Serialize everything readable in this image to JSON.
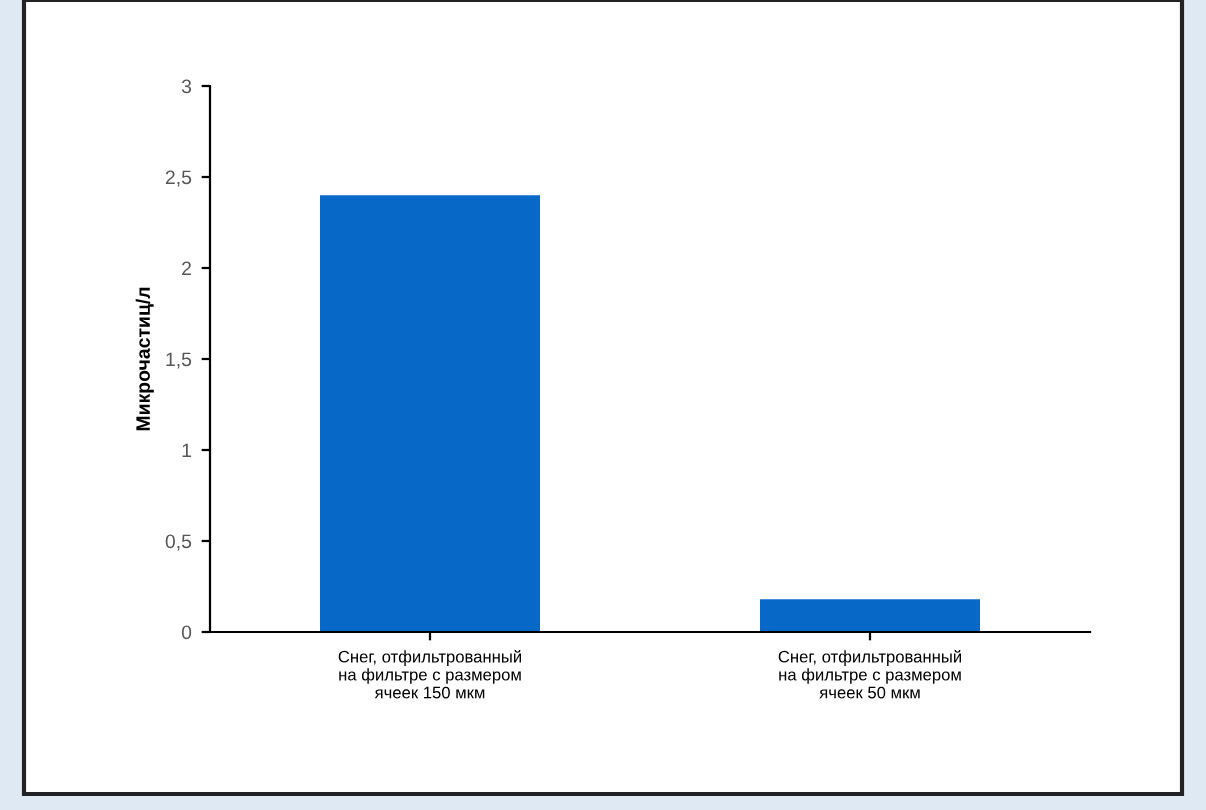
{
  "chart_data": {
    "type": "bar",
    "ylabel": "Микрочастиц/л",
    "categories": [
      "Снег, отфильтрованный\nна фильтре с размером\nячеек 150 мкм",
      "Снег, отфильтрованный\nна фильтре с размером\nячеек 50 мкм"
    ],
    "values": [
      2.4,
      0.18
    ],
    "color": "#0868c8",
    "ylim": [
      0,
      3
    ],
    "yticks": [
      0,
      {
        "value": 0.5,
        "label": "0,5"
      },
      1,
      {
        "value": 1.5,
        "label": "1,5"
      },
      2,
      {
        "value": 2.5,
        "label": "2,5"
      },
      3
    ],
    "grid": false
  }
}
